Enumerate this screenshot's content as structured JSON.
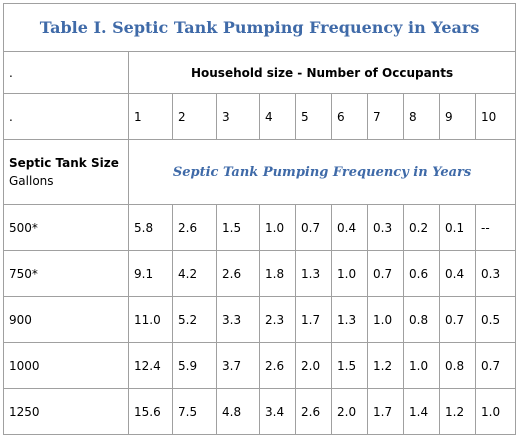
{
  "title": "Table I. Septic Tank Pumping Frequency  in Years",
  "header": {
    "dot1": ".",
    "household_label": "Household size - Number of Occupants",
    "dot2": ".",
    "occupants": [
      "1",
      "2",
      "3",
      "4",
      "5",
      "6",
      "7",
      "8",
      "9",
      "10"
    ]
  },
  "size_header": {
    "line1": "Septic Tank Size",
    "line2": "Gallons",
    "freq_label": "Septic Tank Pumping Frequency in Years"
  },
  "rows": [
    {
      "size": "500*",
      "values": [
        "5.8",
        "2.6",
        "1.5",
        "1.0",
        "0.7",
        "0.4",
        "0.3",
        "0.2",
        "0.1",
        "--"
      ]
    },
    {
      "size": "750*",
      "values": [
        "9.1",
        "4.2",
        "2.6",
        "1.8",
        "1.3",
        "1.0",
        "0.7",
        "0.6",
        "0.4",
        "0.3"
      ]
    },
    {
      "size": "900",
      "values": [
        "11.0",
        "5.2",
        "3.3",
        "2.3",
        "1.7",
        "1.3",
        "1.0",
        "0.8",
        "0.7",
        "0.5"
      ]
    },
    {
      "size": "1000",
      "values": [
        "12.4",
        "5.9",
        "3.7",
        "2.6",
        "2.0",
        "1.5",
        "1.2",
        "1.0",
        "0.8",
        "0.7"
      ]
    },
    {
      "size": "1250",
      "values": [
        "15.6",
        "7.5",
        "4.8",
        "3.4",
        "2.6",
        "2.0",
        "1.7",
        "1.4",
        "1.2",
        "1.0"
      ]
    }
  ],
  "colors": {
    "title": "#3f6aa8",
    "border": "#a0a0a0"
  }
}
